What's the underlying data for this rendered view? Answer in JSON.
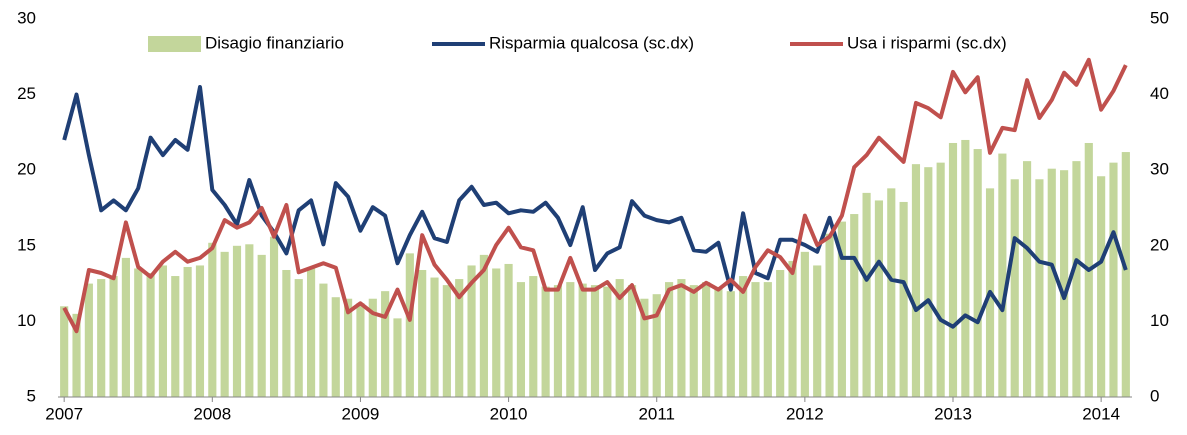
{
  "chart_data": {
    "type": "bar",
    "legend": "top",
    "grid": false,
    "categories": [
      "2007",
      null,
      null,
      null,
      null,
      null,
      null,
      null,
      null,
      null,
      null,
      null,
      "2008",
      null,
      null,
      null,
      null,
      null,
      null,
      null,
      null,
      null,
      null,
      null,
      "2009",
      null,
      null,
      null,
      null,
      null,
      null,
      null,
      null,
      null,
      null,
      null,
      "2010",
      null,
      null,
      null,
      null,
      null,
      null,
      null,
      null,
      null,
      null,
      null,
      "2011",
      null,
      null,
      null,
      null,
      null,
      null,
      null,
      null,
      null,
      null,
      null,
      "2012",
      null,
      null,
      null,
      null,
      null,
      null,
      null,
      null,
      null,
      null,
      null,
      "2013",
      null,
      null,
      null,
      null,
      null,
      null,
      null,
      null,
      null,
      null,
      null,
      "2014",
      null,
      null
    ],
    "ylim": [
      5,
      30
    ],
    "yticks": [
      5,
      10,
      15,
      20,
      25,
      30
    ],
    "y2lim": [
      0,
      50
    ],
    "y2ticks": [
      0,
      10,
      20,
      30,
      40,
      50
    ],
    "series": [
      {
        "name": "Disagio finanziario",
        "type": "bar",
        "color": "#c3d69b",
        "values": [
          11.0,
          10.5,
          12.5,
          12.8,
          13.0,
          14.2,
          13.5,
          13.2,
          13.7,
          13.0,
          13.6,
          13.7,
          15.2,
          14.6,
          15.0,
          15.1,
          14.4,
          15.6,
          13.4,
          12.8,
          13.5,
          12.5,
          11.6,
          11.5,
          11.2,
          11.5,
          12.0,
          10.2,
          14.5,
          13.4,
          12.9,
          12.4,
          12.8,
          13.7,
          14.4,
          13.5,
          13.8,
          12.6,
          13.0,
          12.3,
          12.4,
          12.6,
          12.5,
          12.4,
          12.3,
          12.8,
          12.4,
          11.5,
          11.8,
          12.6,
          12.8,
          12.4,
          12.6,
          12.2,
          12.0,
          13.0,
          12.6,
          12.6,
          13.4,
          14.0,
          14.6,
          13.7,
          15.8,
          16.6,
          17.1,
          18.5,
          18.0,
          18.8,
          17.9,
          20.4,
          20.2,
          20.5,
          21.8,
          22.0,
          21.4,
          18.8,
          21.1,
          19.4,
          20.6,
          19.4,
          20.1,
          20.0,
          20.6,
          21.8,
          19.6,
          20.5,
          21.2
        ]
      },
      {
        "name": "Risparmia qualcosa (sc.dx)",
        "type": "line",
        "axis": "y2",
        "color": "#1f3f75",
        "values": [
          34,
          40,
          32,
          24.7,
          26,
          24.7,
          27.6,
          34.3,
          32,
          34,
          32.7,
          41,
          27.4,
          25.4,
          22.8,
          28.7,
          24,
          21.8,
          19,
          24.7,
          26,
          20.2,
          28.3,
          26.5,
          22,
          25.1,
          24,
          17.7,
          21.4,
          24.5,
          21,
          20.5,
          26,
          27.8,
          25.4,
          25.7,
          24.3,
          24.7,
          24.5,
          25.7,
          23.7,
          20.1,
          25.1,
          16.8,
          19,
          19.8,
          25.9,
          24,
          23.4,
          23.1,
          23.7,
          19.4,
          19.2,
          20.4,
          14.2,
          24.3,
          16.4,
          15.7,
          20.8,
          20.8,
          20.1,
          19.2,
          23.7,
          18.4,
          18.4,
          15.5,
          17.9,
          15.5,
          15.2,
          11.5,
          12.8,
          10.2,
          9.3,
          10.8,
          9.9,
          13.9,
          11.5,
          21,
          19.7,
          17.9,
          17.5,
          13.1,
          18.1,
          16.8,
          17.9,
          21.8,
          16.8
        ]
      },
      {
        "name": "Usa i risparmi (sc.dx)",
        "type": "line",
        "axis": "y2",
        "color": "#c0504d",
        "values": [
          11.8,
          8.7,
          16.8,
          16.4,
          15.7,
          23.1,
          17.2,
          15.9,
          17.9,
          19.2,
          17.9,
          18.4,
          19.7,
          23.4,
          22.4,
          23.1,
          25,
          21.2,
          25.4,
          16.5,
          17.1,
          17.7,
          17.1,
          11.2,
          12.4,
          11.1,
          10.6,
          14.2,
          10.2,
          21.4,
          17.5,
          15.5,
          13.2,
          15.1,
          16.8,
          20.1,
          22.4,
          19.8,
          19.4,
          14.2,
          14.2,
          18.4,
          14.2,
          14.2,
          15.2,
          13.1,
          14.8,
          10.4,
          10.8,
          14.2,
          14.8,
          13.9,
          15.1,
          14.2,
          15.5,
          13.9,
          17.2,
          19.4,
          18.5,
          16.4,
          24,
          20.1,
          21.2,
          24,
          30.4,
          32,
          34.3,
          32.7,
          31.1,
          38.9,
          38.2,
          37,
          43,
          40.3,
          42.3,
          32.3,
          35.6,
          35.3,
          41.9,
          36.9,
          39.3,
          42.9,
          41.3,
          44.6,
          38,
          40.5,
          43.9
        ]
      }
    ]
  }
}
